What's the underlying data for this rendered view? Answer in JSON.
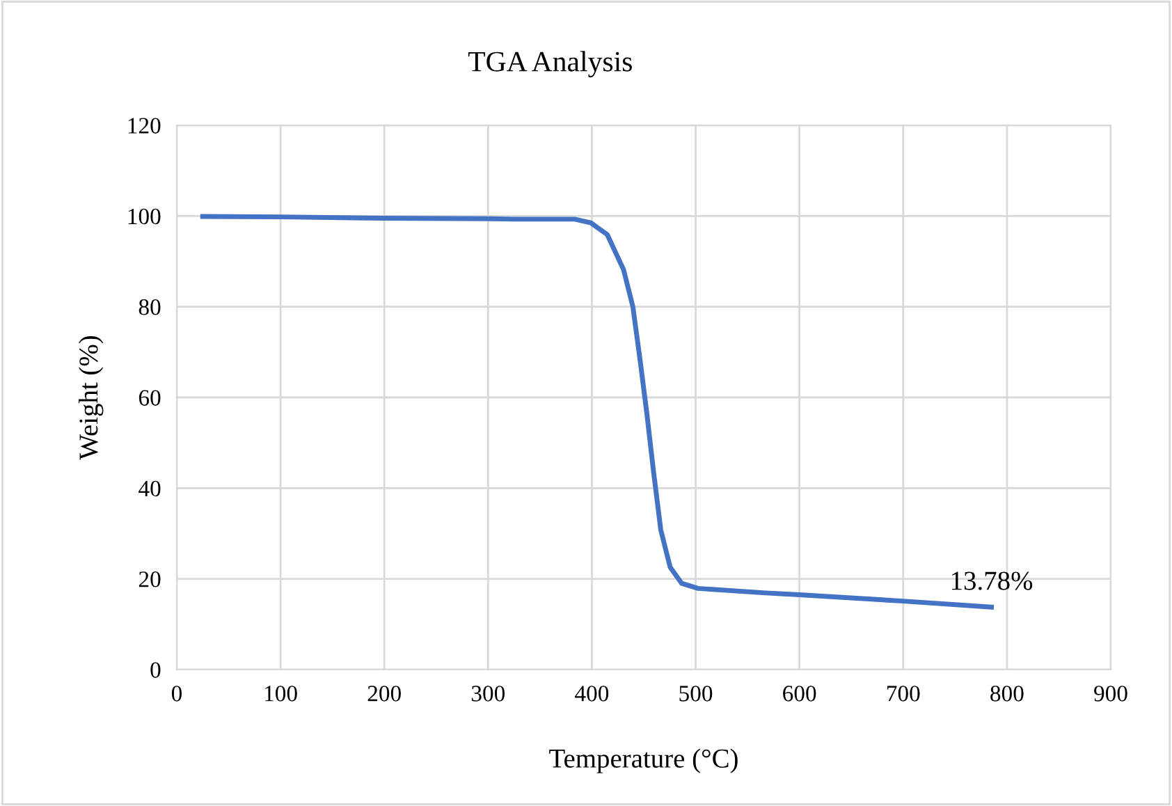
{
  "chart_data": {
    "type": "line",
    "title": "TGA Analysis",
    "xlabel": "Temperature (°C)",
    "ylabel": "Weight (%)",
    "series": [
      {
        "color": "#4472c4",
        "x": [
          25,
          100,
          200,
          300,
          325,
          383.4,
          399,
          414.8,
          430.5,
          439.5,
          446.2,
          453,
          459.7,
          466.4,
          475.4,
          486.6,
          502.3,
          567.4,
          600,
          700,
          785
        ],
        "values": [
          99.9,
          99.8,
          99.5,
          99.4,
          99.3,
          99.3,
          98.5,
          95.9,
          88.2,
          80,
          68.7,
          56.4,
          43.1,
          30.8,
          22.6,
          19.0,
          17.9,
          16.9,
          16.5,
          15.1,
          13.78
        ]
      }
    ],
    "annotations": [
      {
        "text": "13.78%",
        "x": 785,
        "y": 13.78
      }
    ],
    "xlim": [
      0,
      900
    ],
    "xticks": [
      0,
      100,
      200,
      300,
      400,
      500,
      600,
      700,
      800,
      900
    ],
    "ylim": [
      0,
      120
    ],
    "yticks": [
      0,
      20,
      40,
      60,
      80,
      100,
      120
    ],
    "grid": true
  }
}
